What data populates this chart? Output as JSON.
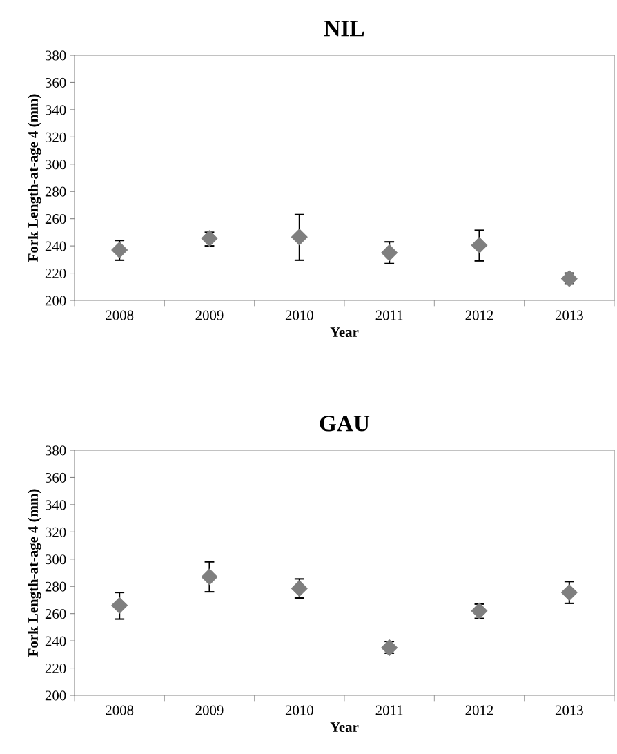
{
  "chart_data": [
    {
      "type": "scatter",
      "title": "NIL",
      "xlabel": "Year",
      "ylabel": "Fork Length-at-age 4 (mm)",
      "categories": [
        "2008",
        "2009",
        "2010",
        "2011",
        "2012",
        "2013"
      ],
      "values": [
        237,
        245.5,
        246.5,
        235,
        240.5,
        216
      ],
      "errors": [
        [
          229.5,
          244
        ],
        [
          240,
          250
        ],
        [
          229.5,
          263
        ],
        [
          227,
          243
        ],
        [
          229,
          251.5
        ],
        [
          212,
          220
        ]
      ],
      "color": "#7f7f7f",
      "marker": "diamond",
      "ylim": [
        200,
        380
      ],
      "yticks": [
        200,
        220,
        240,
        260,
        280,
        300,
        320,
        340,
        360,
        380
      ],
      "grid": false,
      "legend": false
    },
    {
      "type": "scatter",
      "title": "GAU",
      "xlabel": "Year",
      "ylabel": "Fork Length-at-age 4 (mm)",
      "categories": [
        "2008",
        "2009",
        "2010",
        "2011",
        "2012",
        "2013"
      ],
      "values": [
        266,
        287,
        278.5,
        235,
        262,
        275.5
      ],
      "errors": [
        [
          256,
          275.5
        ],
        [
          276,
          298
        ],
        [
          271.5,
          285.5
        ],
        [
          231,
          239.5
        ],
        [
          256.5,
          267
        ],
        [
          267.5,
          283.5
        ]
      ],
      "color": "#7f7f7f",
      "marker": "diamond",
      "ylim": [
        200,
        380
      ],
      "yticks": [
        200,
        220,
        240,
        260,
        280,
        300,
        320,
        340,
        360,
        380
      ],
      "grid": false,
      "legend": false
    }
  ]
}
